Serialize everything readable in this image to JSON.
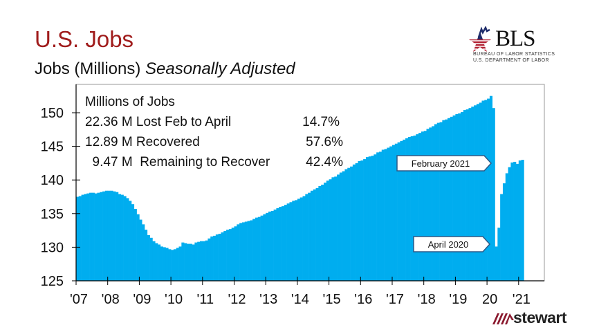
{
  "header": {
    "title": "U.S. Jobs",
    "subtitle_main": "Jobs (Millions)",
    "subtitle_italic": "Seasonally Adjusted"
  },
  "logos": {
    "bls": {
      "text": "BLS",
      "line1": "BUREAU OF LABOR STATISTICS",
      "line2": "U.S. DEPARTMENT OF LABOR"
    },
    "stewart": {
      "text": "stewart"
    }
  },
  "colors": {
    "title": "#a01c1c",
    "bars": "#00adef",
    "stewart": "#8b1a2f"
  },
  "chart_data": {
    "type": "bar",
    "title": "",
    "xlabel": "",
    "ylabel": "",
    "ylim": [
      125,
      154
    ],
    "yticks": [
      125,
      130,
      135,
      140,
      145,
      150
    ],
    "xtick_labels": [
      "'07",
      "'08",
      "'09",
      "'10",
      "'11",
      "'12",
      "'13",
      "'14",
      "'15",
      "'16",
      "'17",
      "'18",
      "'19",
      "20",
      "'21"
    ],
    "x_start": "2007-01",
    "x_end": "2021-02",
    "frequency": "monthly",
    "grid": false,
    "values": [
      137.5,
      137.6,
      137.8,
      137.9,
      138.0,
      138.1,
      138.1,
      138.0,
      138.1,
      138.2,
      138.3,
      138.4,
      138.4,
      138.4,
      138.3,
      138.2,
      137.9,
      137.8,
      137.6,
      137.3,
      136.9,
      136.4,
      135.7,
      134.9,
      134.1,
      133.4,
      132.6,
      131.8,
      131.4,
      130.9,
      130.6,
      130.4,
      130.1,
      130.0,
      129.9,
      129.7,
      129.6,
      129.7,
      129.9,
      130.1,
      130.7,
      130.6,
      130.5,
      130.5,
      130.4,
      130.7,
      130.8,
      130.9,
      130.9,
      131.0,
      131.3,
      131.6,
      131.7,
      131.9,
      132.0,
      132.2,
      132.4,
      132.6,
      132.7,
      132.9,
      133.1,
      133.4,
      133.6,
      133.7,
      133.8,
      133.9,
      134.0,
      134.2,
      134.4,
      134.5,
      134.7,
      134.9,
      135.1,
      135.3,
      135.4,
      135.6,
      135.8,
      136.0,
      136.1,
      136.3,
      136.5,
      136.7,
      136.9,
      137.0,
      137.2,
      137.4,
      137.6,
      137.9,
      138.1,
      138.4,
      138.6,
      138.8,
      139.1,
      139.3,
      139.6,
      139.9,
      140.1,
      140.4,
      140.5,
      140.8,
      141.1,
      141.3,
      141.6,
      141.8,
      142.0,
      142.3,
      142.5,
      142.8,
      142.9,
      143.1,
      143.4,
      143.5,
      143.6,
      143.8,
      144.1,
      144.2,
      144.5,
      144.6,
      144.8,
      145.0,
      145.2,
      145.4,
      145.6,
      145.8,
      146.0,
      146.2,
      146.4,
      146.5,
      146.6,
      146.8,
      147.0,
      147.2,
      147.3,
      147.6,
      147.8,
      148.0,
      148.3,
      148.5,
      148.6,
      148.9,
      149.0,
      149.2,
      149.4,
      149.6,
      149.8,
      149.9,
      150.1,
      150.4,
      150.5,
      150.7,
      150.9,
      151.1,
      151.3,
      151.5,
      151.8,
      151.9,
      152.1,
      152.5,
      150.7,
      130.1,
      132.9,
      137.9,
      139.5,
      141.0,
      141.9,
      142.6,
      142.7,
      142.4,
      142.9,
      143.0
    ],
    "annotation_box": {
      "heading": "Millions of Jobs",
      "rows": [
        {
          "text": "22.36 M Lost Feb to April",
          "pct": "14.7%"
        },
        {
          "text": "12.89 M Recovered",
          "pct": "57.6%"
        },
        {
          "text": "  9.47 M  Remaining to Recover",
          "pct": "42.4%"
        }
      ]
    },
    "callouts": [
      {
        "label": "February 2021",
        "value": 143.0
      },
      {
        "label": "April 2020",
        "value": 130.1
      }
    ]
  }
}
